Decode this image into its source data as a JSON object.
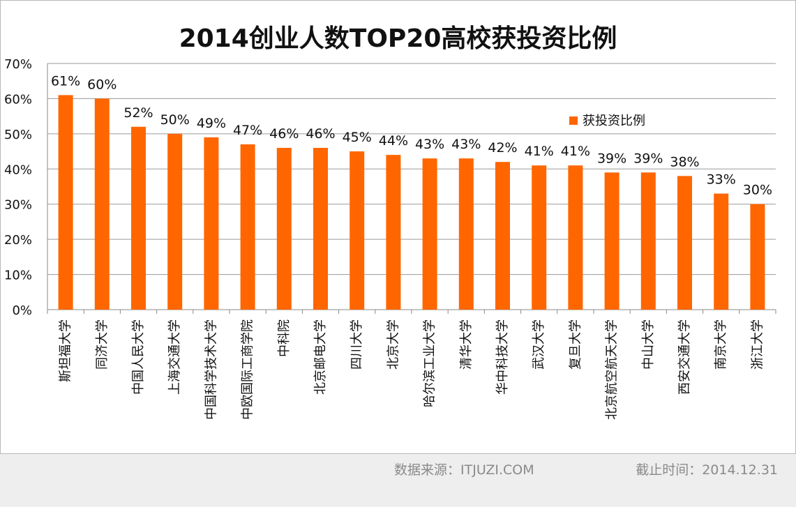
{
  "chart_data": {
    "type": "bar",
    "title": "2014创业人数TOP20高校获投资比例",
    "categories": [
      "斯坦福大学",
      "同济大学",
      "中国人民大学",
      "上海交通大学",
      "中国科学技术大学",
      "中欧国际工商学院",
      "中科院",
      "北京邮电大学",
      "四川大学",
      "北京大学",
      "哈尔滨工业大学",
      "清华大学",
      "华中科技大学",
      "武汉大学",
      "复旦大学",
      "北京航空航天大学",
      "中山大学",
      "西安交通大学",
      "南京大学",
      "浙江大学"
    ],
    "series": [
      {
        "name": "获投资比例",
        "values": [
          61,
          60,
          52,
          50,
          49,
          47,
          46,
          46,
          45,
          44,
          43,
          43,
          42,
          41,
          41,
          39,
          39,
          38,
          33,
          30
        ],
        "labels": [
          "61%",
          "60%",
          "52%",
          "50%",
          "49%",
          "47%",
          "46%",
          "46%",
          "45%",
          "44%",
          "43%",
          "43%",
          "42%",
          "41%",
          "41%",
          "39%",
          "39%",
          "38%",
          "33%",
          "30%"
        ],
        "color": "#ff6600"
      }
    ],
    "yticks": [
      "0%",
      "10%",
      "20%",
      "30%",
      "40%",
      "50%",
      "60%",
      "70%"
    ],
    "ylim": [
      0,
      70
    ],
    "grid": true,
    "legend_position": "upper-right",
    "xlabel": "",
    "ylabel": ""
  },
  "footer": {
    "source": "数据来源：ITJUZI.COM",
    "date": "截止时间：2014.12.31"
  }
}
